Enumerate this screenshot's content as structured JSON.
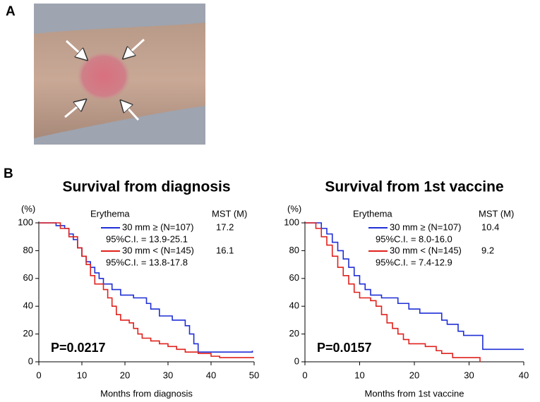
{
  "figure": {
    "panel_a_label": "A",
    "panel_b_label": "B"
  },
  "chart_data": [
    {
      "type": "line",
      "title": "Survival from diagnosis",
      "y_unit": "(%)",
      "x_label": "Months from diagnosis",
      "legend_header": "Erythema",
      "mst_header": "MST (M)",
      "p_value": "P=0.0217",
      "xlim": [
        0,
        50
      ],
      "xticks": [
        0,
        10,
        20,
        30,
        40,
        50
      ],
      "ylim": [
        0,
        100
      ],
      "yticks": [
        0,
        20,
        40,
        60,
        80,
        100
      ],
      "series": [
        {
          "name": "30 mm ≥ (N=107)",
          "color": "#1f2fd6",
          "mst": "17.2",
          "ci": "95%C.I. = 13.9-25.1",
          "x": [
            0,
            4,
            4,
            6,
            6,
            7,
            7,
            8,
            8,
            9,
            9,
            10,
            10,
            11,
            11,
            12,
            12,
            13,
            13,
            14,
            14,
            15,
            15,
            17,
            17,
            19,
            19,
            22,
            22,
            25,
            25,
            26,
            26,
            28,
            28,
            31,
            31,
            34,
            34,
            35,
            35,
            36,
            36,
            37,
            37,
            49.6,
            49.6
          ],
          "values": [
            100,
            100,
            98,
            98,
            96,
            96,
            92,
            92,
            88,
            88,
            82,
            82,
            76,
            76,
            72,
            72,
            68,
            68,
            64,
            64,
            60,
            60,
            56,
            56,
            52,
            52,
            48,
            48,
            46,
            46,
            42,
            42,
            38,
            38,
            33,
            33,
            30,
            30,
            26,
            26,
            20,
            20,
            13,
            13,
            7,
            7,
            8
          ]
        },
        {
          "name": "30 mm < (N=145)",
          "color": "#e0211c",
          "mst": "16.1",
          "ci": "95%C.I. = 13.8-17.8",
          "x": [
            0,
            5,
            5,
            7,
            7,
            9,
            9,
            10,
            10,
            11,
            11,
            12,
            12,
            13,
            13,
            15,
            15,
            16,
            16,
            17,
            17,
            18,
            18,
            19,
            19,
            21,
            21,
            22,
            22,
            23,
            23,
            24,
            24,
            26,
            26,
            28,
            28,
            30,
            30,
            32,
            32,
            34,
            34,
            37,
            37,
            40,
            40,
            42,
            42,
            50
          ],
          "values": [
            100,
            100,
            96,
            96,
            90,
            90,
            82,
            82,
            76,
            76,
            70,
            70,
            62,
            62,
            56,
            56,
            52,
            52,
            46,
            46,
            40,
            40,
            34,
            34,
            30,
            30,
            28,
            28,
            24,
            24,
            20,
            20,
            17,
            17,
            15,
            15,
            13,
            13,
            11,
            11,
            9,
            9,
            7,
            7,
            6,
            6,
            4,
            4,
            3,
            3
          ]
        }
      ]
    },
    {
      "type": "line",
      "title": "Survival from 1st vaccine",
      "y_unit": "(%)",
      "x_label": "Months from 1st vaccine",
      "legend_header": "Erythema",
      "mst_header": "MST (M)",
      "p_value": "P=0.0157",
      "xlim": [
        0,
        40
      ],
      "xticks": [
        0,
        10,
        20,
        30,
        40
      ],
      "ylim": [
        0,
        100
      ],
      "yticks": [
        0,
        20,
        40,
        60,
        80,
        100
      ],
      "series": [
        {
          "name": "30 mm ≥ (N=107)",
          "color": "#1f2fd6",
          "mst": "10.4",
          "ci": "95%C.I. = 8.0-16.0",
          "x": [
            0,
            3,
            3,
            4,
            4,
            5,
            5,
            6,
            6,
            7,
            7,
            8,
            8,
            9,
            9,
            10,
            10,
            11,
            11,
            12,
            12,
            14,
            14,
            17,
            17,
            19,
            19,
            21,
            21,
            25,
            25,
            26,
            26,
            28,
            28,
            29,
            29,
            32.5,
            32.5,
            40
          ],
          "values": [
            100,
            100,
            96,
            96,
            92,
            92,
            86,
            86,
            80,
            80,
            74,
            74,
            68,
            68,
            62,
            62,
            56,
            56,
            52,
            52,
            48,
            48,
            46,
            46,
            42,
            42,
            38,
            38,
            35,
            35,
            30,
            30,
            27,
            27,
            22,
            22,
            19,
            19,
            9,
            9
          ]
        },
        {
          "name": "30 mm < (N=145)",
          "color": "#e0211c",
          "mst": "9.2",
          "ci": "95%C.I. = 7.4-12.9",
          "x": [
            0,
            2,
            2,
            3,
            3,
            4,
            4,
            5,
            5,
            6,
            6,
            7,
            7,
            8,
            8,
            9,
            9,
            10,
            10,
            12,
            12,
            13,
            13,
            14,
            14,
            15,
            15,
            16,
            16,
            17,
            17,
            18,
            18,
            19,
            19,
            22,
            22,
            24,
            24,
            25,
            25,
            27,
            27,
            32,
            32
          ],
          "values": [
            100,
            100,
            96,
            96,
            90,
            90,
            84,
            84,
            76,
            76,
            68,
            68,
            62,
            62,
            56,
            56,
            50,
            50,
            46,
            46,
            44,
            44,
            40,
            40,
            34,
            34,
            28,
            28,
            24,
            24,
            20,
            20,
            16,
            16,
            13,
            13,
            11,
            11,
            8,
            8,
            6,
            6,
            3,
            3,
            0
          ]
        }
      ]
    }
  ]
}
